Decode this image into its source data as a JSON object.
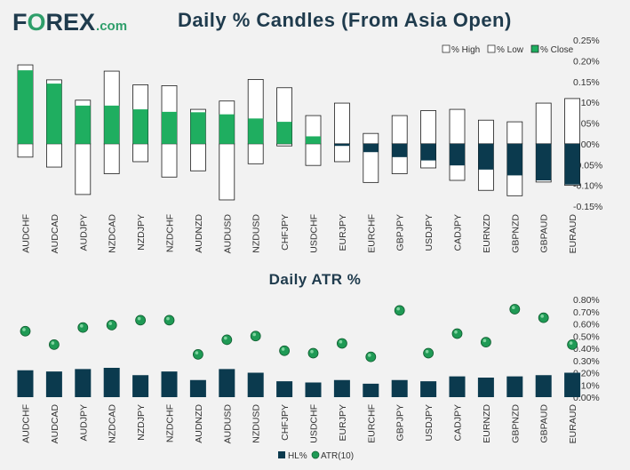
{
  "brand": {
    "prefix": "F",
    "o": "O",
    "suffix": "REX",
    "tld": ".com"
  },
  "titles": {
    "candles": "Daily % Candles (From Asia Open)",
    "atr": "Daily ATR %"
  },
  "colors": {
    "navy": "#0b3a4e",
    "green": "#1fae60",
    "bullet": "#1f9a55",
    "bg": "#f2f2f2",
    "text": "#333333",
    "title": "#1f3b4d"
  },
  "chart_data": [
    {
      "type": "bar",
      "subtype": "candle-range",
      "title": "Daily % Candles (From Asia Open)",
      "categories": [
        "AUDCHF",
        "AUDCAD",
        "AUDJPY",
        "NZDCAD",
        "NZDJPY",
        "NZDCHF",
        "AUDNZD",
        "AUDUSD",
        "NZDUSD",
        "CHFJPY",
        "USDCHF",
        "EURJPY",
        "EURCHF",
        "GBPJPY",
        "USDJPY",
        "CADJPY",
        "EURNZD",
        "GBPNZD",
        "GBPAUD",
        "EURAUD"
      ],
      "series": [
        {
          "name": "% High",
          "values": [
            0.19,
            0.154,
            0.105,
            0.175,
            0.142,
            0.14,
            0.083,
            0.103,
            0.155,
            0.135,
            0.068,
            0.098,
            0.025,
            0.068,
            0.08,
            0.083,
            0.057,
            0.053,
            0.098,
            0.109
          ]
        },
        {
          "name": "% Low",
          "values": [
            -0.032,
            -0.056,
            -0.122,
            -0.072,
            -0.043,
            -0.08,
            -0.065,
            -0.135,
            -0.048,
            -0.005,
            -0.052,
            -0.043,
            -0.093,
            -0.072,
            -0.058,
            -0.088,
            -0.112,
            -0.125,
            -0.092,
            -0.1
          ]
        },
        {
          "name": "% Close",
          "values": [
            0.177,
            0.145,
            0.092,
            0.092,
            0.083,
            0.077,
            0.076,
            0.071,
            0.061,
            0.053,
            0.018,
            -0.005,
            -0.02,
            -0.032,
            -0.04,
            -0.052,
            -0.062,
            -0.076,
            -0.088,
            -0.098
          ]
        }
      ],
      "legend": [
        "% High",
        "% Low",
        "% Close"
      ],
      "legend_position": "top-right",
      "ylim": [
        -0.15,
        0.25
      ],
      "yticks": [
        "-0.15%",
        "-0.10%",
        "-0.05%",
        "0.00%",
        "0.05%",
        "0.10%",
        "0.15%",
        "0.20%",
        "0.25%"
      ],
      "ylabel": "",
      "xlabel": ""
    },
    {
      "type": "bar",
      "title": "Daily ATR %",
      "categories": [
        "AUDCHF",
        "AUDCAD",
        "AUDJPY",
        "NZDCAD",
        "NZDJPY",
        "NZDCHF",
        "AUDNZD",
        "AUDUSD",
        "NZDUSD",
        "CHFJPY",
        "USDCHF",
        "EURJPY",
        "EURCHF",
        "GBPJPY",
        "USDJPY",
        "CADJPY",
        "EURNZD",
        "GBPNZD",
        "GBPAUD",
        "EURAUD"
      ],
      "series": [
        {
          "name": "HL%",
          "type": "bar",
          "values": [
            0.22,
            0.21,
            0.23,
            0.24,
            0.18,
            0.21,
            0.14,
            0.23,
            0.2,
            0.13,
            0.12,
            0.14,
            0.11,
            0.14,
            0.13,
            0.17,
            0.16,
            0.17,
            0.18,
            0.2
          ]
        },
        {
          "name": "ATR(10)",
          "type": "scatter",
          "values": [
            0.54,
            0.43,
            0.57,
            0.59,
            0.63,
            0.63,
            0.35,
            0.47,
            0.5,
            0.38,
            0.36,
            0.44,
            0.33,
            0.71,
            0.36,
            0.52,
            0.45,
            0.72,
            0.65,
            0.43
          ]
        }
      ],
      "legend": [
        "HL%",
        "ATR(10)"
      ],
      "legend_position": "bottom-center",
      "ylim": [
        0,
        0.8
      ],
      "yticks": [
        "0.00%",
        "0.10%",
        "0.20%",
        "0.30%",
        "0.40%",
        "0.50%",
        "0.60%",
        "0.70%",
        "0.80%"
      ],
      "ylabel": "",
      "xlabel": ""
    }
  ]
}
